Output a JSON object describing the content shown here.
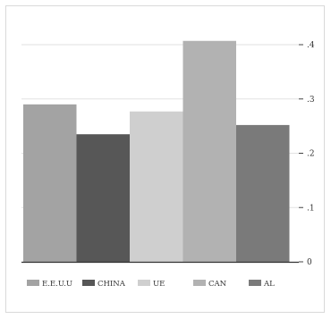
{
  "chart_data": {
    "type": "bar",
    "categories": [
      "E.E.U.U",
      "CHINA",
      "UE",
      "CAN",
      "AL"
    ],
    "values": [
      0.29,
      0.235,
      0.277,
      0.407,
      0.252
    ],
    "colors": [
      "#a3a3a3",
      "#575757",
      "#cfcfcf",
      "#b2b2b2",
      "#7a7a7a"
    ],
    "title": "",
    "xlabel": "",
    "ylabel": "",
    "ylim": [
      0,
      0.4
    ],
    "yticks": [
      0,
      0.1,
      0.2,
      0.3,
      0.4
    ],
    "ytick_labels": [
      "0",
      ".1",
      ".2",
      ".3",
      ".4"
    ],
    "y_axis_side": "right",
    "grid": true,
    "legend_position": "bottom"
  }
}
